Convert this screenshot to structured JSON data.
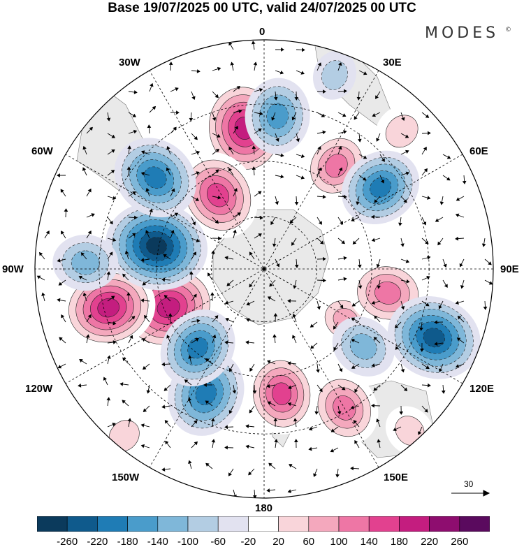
{
  "title": "Base 19/07/2025 00 UTC, valid 24/07/2025 00 UTC",
  "brand": {
    "name": "MODES",
    "mark": "©"
  },
  "map": {
    "projection": "south polar stereographic",
    "longitude_labels": {
      "top": "0",
      "bottom": "180",
      "left": "90W",
      "right": "90E",
      "upper_left_30": "30W",
      "upper_right_30": "30E",
      "upper_left_60": "60W",
      "upper_right_60": "60E",
      "lower_left_120": "120W",
      "lower_right_120": "120E",
      "lower_left_150": "150W",
      "lower_right_150": "150E"
    },
    "wind_reference_value": "30",
    "positive_anomalies": [
      {
        "lon": -8,
        "lat_dist": 0.62,
        "value": 240
      },
      {
        "lon": -32,
        "lat_dist": 0.38,
        "value": 210
      },
      {
        "lon": -112,
        "lat_dist": 0.45,
        "value": 250
      },
      {
        "lon": -104,
        "lat_dist": 0.7,
        "value": 230
      },
      {
        "lon": 172,
        "lat_dist": 0.55,
        "value": 180
      },
      {
        "lon": 150,
        "lat_dist": 0.7,
        "value": 160
      },
      {
        "lon": 122,
        "lat_dist": 0.42,
        "value": 100
      },
      {
        "lon": 101,
        "lat_dist": 0.55,
        "value": 170
      },
      {
        "lon": 35,
        "lat_dist": 0.55,
        "value": 150
      },
      {
        "lon": 45,
        "lat_dist": 0.85,
        "value": 90
      },
      {
        "lon": 138,
        "lat_dist": 0.95,
        "value": 70
      },
      {
        "lon": -140,
        "lat_dist": 0.95,
        "value": 80
      }
    ],
    "negative_anomalies": [
      {
        "lon": -78,
        "lat_dist": 0.48,
        "value": -260
      },
      {
        "lon": -50,
        "lat_dist": 0.62,
        "value": -200
      },
      {
        "lon": 5,
        "lat_dist": 0.67,
        "value": -160
      },
      {
        "lon": 55,
        "lat_dist": 0.62,
        "value": -180
      },
      {
        "lon": 112,
        "lat_dist": 0.8,
        "value": -230
      },
      {
        "lon": 128,
        "lat_dist": 0.55,
        "value": -120
      },
      {
        "lon": -155,
        "lat_dist": 0.6,
        "value": -200
      },
      {
        "lon": -140,
        "lat_dist": 0.45,
        "value": -180
      },
      {
        "lon": -88,
        "lat_dist": 0.78,
        "value": -120
      },
      {
        "lon": 20,
        "lat_dist": 0.9,
        "value": -60
      }
    ]
  },
  "colorbar": {
    "colors": [
      "#0b3a5c",
      "#0f5a8c",
      "#1f7cb5",
      "#4a9ccb",
      "#7fb7d9",
      "#b3cde3",
      "#e2e2f0",
      "#ffffff",
      "#f9d5da",
      "#f4a8bd",
      "#ee76a5",
      "#e2418f",
      "#c41d7f",
      "#8e0d6f",
      "#5a0a5e"
    ],
    "tick_labels": [
      "-260",
      "-220",
      "-180",
      "-140",
      "-100",
      "-60",
      "-20",
      "20",
      "60",
      "100",
      "140",
      "180",
      "220",
      "260"
    ]
  }
}
